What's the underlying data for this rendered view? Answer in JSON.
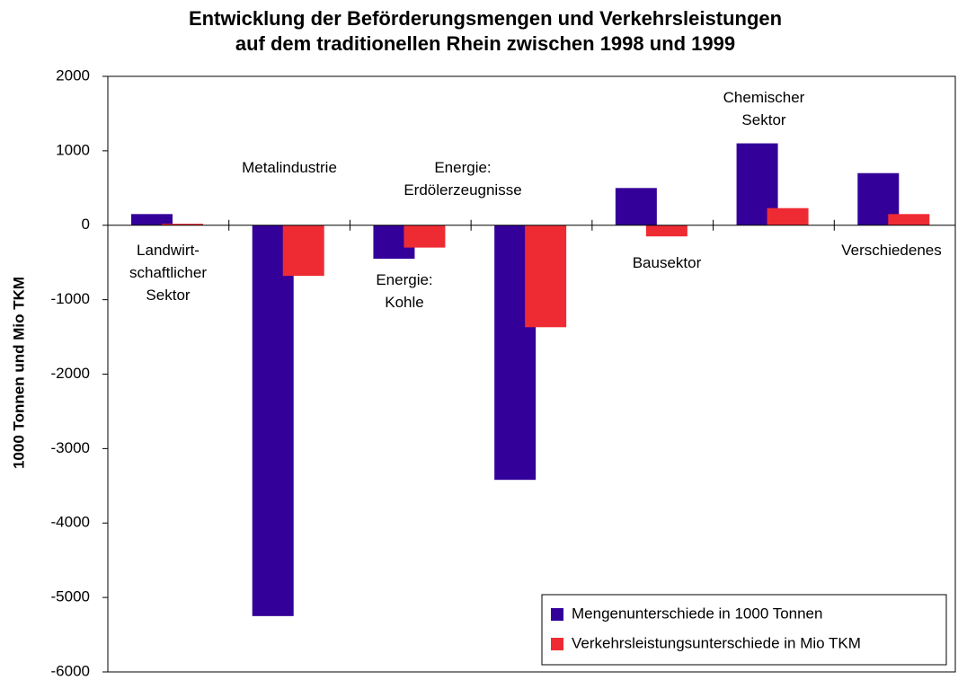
{
  "chart_data": {
    "type": "bar",
    "title": [
      "Entwicklung der Beförderungsmengen und Verkehrsleistungen",
      "auf dem traditionellen Rhein zwischen 1998 und 1999"
    ],
    "y_label": "1000 Tonnen und Mio TKM",
    "categories": [
      [
        "Landwirt-",
        "schaftlicher",
        "Sektor"
      ],
      [
        "Metalindustrie"
      ],
      [
        "Energie:",
        "Kohle"
      ],
      [
        "Energie:",
        "Erdölerzeugnisse"
      ],
      [
        "Bausektor"
      ],
      [
        "Chemischer",
        "Sektor"
      ],
      [
        "Verschiedenes"
      ]
    ],
    "series": [
      {
        "name": "Mengenunterschiede in 1000 Tonnen",
        "color": "#330099",
        "values": [
          150,
          -5250,
          -450,
          -3420,
          500,
          1100,
          700
        ]
      },
      {
        "name": "Verkehrsleistungsunterschiede in Mio TKM",
        "color": "#ee2b33",
        "values": [
          20,
          -680,
          -300,
          -1370,
          -150,
          230,
          150
        ]
      }
    ],
    "ylim": [
      -6000,
      2000
    ],
    "yticks": [
      2000,
      1000,
      0,
      -1000,
      -2000,
      -3000,
      -4000,
      -5000,
      -6000
    ],
    "legend": "lower right"
  }
}
